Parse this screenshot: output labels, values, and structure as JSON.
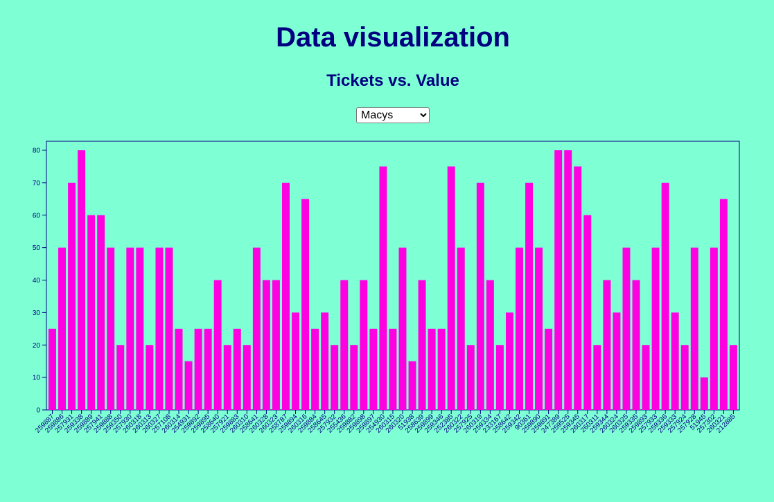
{
  "page": {
    "title": "Data visualization",
    "subtitle": "Tickets vs. Value"
  },
  "selector": {
    "selected": "Macys",
    "options": [
      "Macys"
    ]
  },
  "colors": {
    "background": "#7fffd4",
    "bar": "#ff00e0",
    "text": "#000080",
    "axis": "#000080"
  },
  "chart_data": {
    "type": "bar",
    "title": "Tickets vs. Value",
    "xlabel": "",
    "ylabel": "",
    "ylim": [
      0,
      80
    ],
    "yticks": [
      0,
      10,
      20,
      30,
      40,
      50,
      60,
      70,
      80
    ],
    "grid": false,
    "categories": [
      "259887",
      "259886",
      "257931",
      "259338",
      "259889",
      "257941",
      "259888",
      "259350",
      "257930",
      "260318",
      "260313",
      "260327",
      "257108",
      "260314",
      "254931",
      "259892",
      "259895",
      "258640",
      "257921",
      "259883",
      "260310",
      "258641",
      "260328",
      "260323",
      "258787",
      "259894",
      "260316",
      "259884",
      "258645",
      "257932",
      "255436",
      "259882",
      "259898",
      "259897",
      "254930",
      "260315",
      "260320",
      "51938",
      "258639",
      "259899",
      "259346",
      "252385",
      "260322",
      "257925",
      "260319",
      "259334",
      "233167",
      "258642",
      "259342",
      "90361",
      "259890",
      "259891",
      "247389",
      "259525",
      "259345",
      "260317",
      "260311",
      "259344",
      "260324",
      "260325",
      "259335",
      "259893",
      "257933",
      "259336",
      "259333",
      "257924",
      "257928",
      "51945",
      "257302",
      "260321",
      "212885"
    ],
    "series": [
      {
        "values": [
          25,
          50,
          70,
          80,
          60,
          60,
          50,
          20,
          50,
          50,
          20,
          50,
          50,
          25,
          15,
          25,
          25,
          40,
          20,
          25,
          20,
          50,
          40,
          40,
          70,
          30,
          65,
          25,
          30,
          20,
          40,
          20,
          40,
          25,
          75,
          25,
          50,
          15,
          40,
          25,
          25,
          75,
          50,
          20,
          70,
          40,
          20,
          30,
          50,
          70,
          50,
          25,
          80,
          80,
          75,
          60,
          20,
          40,
          30,
          50,
          40,
          20,
          50,
          70,
          30,
          20,
          50,
          10,
          50,
          65,
          20
        ]
      }
    ]
  }
}
